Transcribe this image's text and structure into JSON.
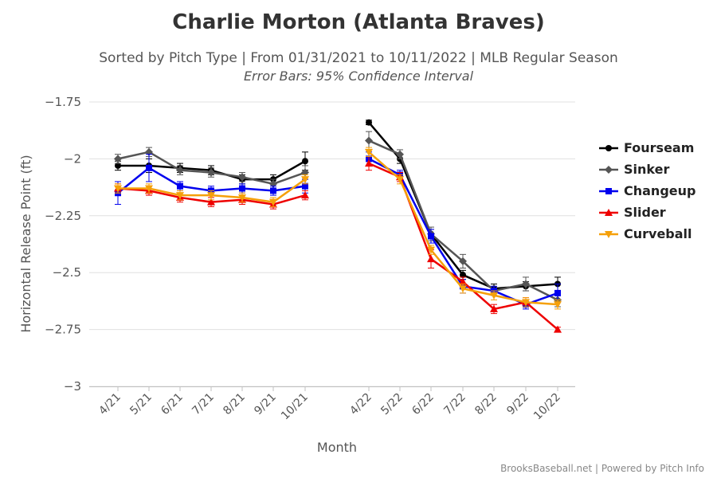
{
  "chart_data": {
    "type": "line",
    "title": "Charlie Morton (Atlanta Braves)",
    "subtitle": "Sorted by Pitch Type | From 01/31/2021 to 10/11/2022 | MLB Regular Season",
    "subtitle2": "Error Bars: 95% Confidence Interval",
    "xlabel": "Month",
    "ylabel": "Horizontal Release Point (ft)",
    "ylim": [
      -3,
      -1.75
    ],
    "yticks": [
      "−1.75",
      "−2",
      "−2.25",
      "−2.5",
      "−2.75",
      "−3"
    ],
    "ytick_values": [
      -1.75,
      -2,
      -2.25,
      -2.5,
      -2.75,
      -3
    ],
    "categories": [
      "4/21",
      "5/21",
      "6/21",
      "7/21",
      "8/21",
      "9/21",
      "10/21",
      "4/22",
      "5/22",
      "6/22",
      "7/22",
      "8/22",
      "9/22",
      "10/22"
    ],
    "legend_position": "right",
    "credit": "BrooksBaseball.net | Powered by Pitch Info",
    "series": [
      {
        "name": "Fourseam",
        "color": "#000000",
        "marker": "circle",
        "values": [
          -2.03,
          -2.03,
          -2.04,
          -2.05,
          -2.09,
          -2.09,
          -2.01,
          -1.84,
          -2.0,
          -2.33,
          -2.51,
          -2.57,
          -2.56,
          -2.55
        ],
        "errors": [
          0.02,
          0.03,
          0.02,
          0.02,
          0.02,
          0.02,
          0.04,
          0.01,
          0.02,
          0.02,
          0.02,
          0.02,
          0.02,
          0.03
        ]
      },
      {
        "name": "Sinker",
        "color": "#555555",
        "marker": "diamond",
        "values": [
          -2.0,
          -1.97,
          -2.05,
          -2.06,
          -2.08,
          -2.11,
          -2.06,
          -1.92,
          -1.98,
          -2.33,
          -2.45,
          -2.58,
          -2.55,
          -2.62
        ],
        "errors": [
          0.02,
          0.02,
          0.02,
          0.02,
          0.02,
          0.02,
          0.03,
          0.04,
          0.02,
          0.03,
          0.03,
          0.02,
          0.03,
          0.03
        ]
      },
      {
        "name": "Changeup",
        "color": "#0000ee",
        "marker": "square",
        "values": [
          -2.15,
          -2.04,
          -2.12,
          -2.14,
          -2.13,
          -2.14,
          -2.12,
          -2.0,
          -2.07,
          -2.34,
          -2.56,
          -2.58,
          -2.64,
          -2.59
        ],
        "errors": [
          0.05,
          0.06,
          0.02,
          0.02,
          0.02,
          0.02,
          0.03,
          0.03,
          0.02,
          0.03,
          0.03,
          0.02,
          0.02,
          0.04
        ]
      },
      {
        "name": "Slider",
        "color": "#ee0000",
        "marker": "triangle",
        "values": [
          -2.13,
          -2.14,
          -2.17,
          -2.19,
          -2.18,
          -2.2,
          -2.16,
          -2.02,
          -2.08,
          -2.44,
          -2.54,
          -2.66,
          -2.63,
          -2.75
        ],
        "errors": [
          0.02,
          0.02,
          0.02,
          0.02,
          0.02,
          0.02,
          0.02,
          0.03,
          0.02,
          0.04,
          0.02,
          0.02,
          0.02,
          0.01
        ]
      },
      {
        "name": "Curveball",
        "color": "#f5a00a",
        "marker": "triangle-down",
        "values": [
          -2.13,
          -2.13,
          -2.16,
          -2.16,
          -2.17,
          -2.19,
          -2.09,
          -1.97,
          -2.09,
          -2.4,
          -2.57,
          -2.6,
          -2.63,
          -2.64
        ],
        "errors": [
          0.02,
          0.02,
          0.02,
          0.02,
          0.02,
          0.02,
          0.02,
          0.02,
          0.02,
          0.02,
          0.02,
          0.02,
          0.02,
          0.02
        ]
      }
    ]
  }
}
